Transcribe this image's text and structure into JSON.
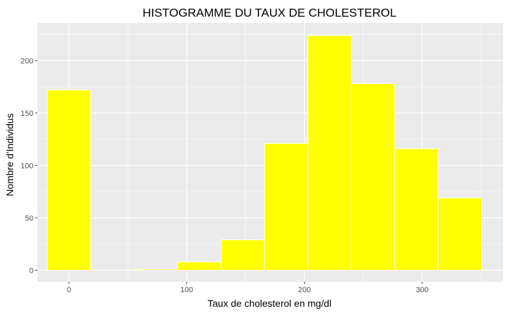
{
  "chart_data": {
    "type": "bar",
    "title": "HISTOGRAMME DU TAUX DE CHOLESTEROL",
    "xlabel": "Taux de cholesterol en mg/dl",
    "ylabel": "Nombre d'Individus",
    "xlim": [
      -26.7,
      368.5
    ],
    "ylim": [
      -11,
      236
    ],
    "xticks": [
      0,
      100,
      200,
      300
    ],
    "yticks": [
      0,
      50,
      100,
      150,
      200
    ],
    "bin_width": 36.9,
    "bins": [
      {
        "start": -18.45,
        "end": 18.45,
        "count": 172
      },
      {
        "start": 18.45,
        "end": 55.35,
        "count": 0
      },
      {
        "start": 55.35,
        "end": 92.25,
        "count": 1
      },
      {
        "start": 92.25,
        "end": 129.15,
        "count": 8
      },
      {
        "start": 129.15,
        "end": 166.05,
        "count": 29
      },
      {
        "start": 166.05,
        "end": 202.95,
        "count": 121
      },
      {
        "start": 202.95,
        "end": 239.85,
        "count": 224
      },
      {
        "start": 239.85,
        "end": 276.75,
        "count": 178
      },
      {
        "start": 276.75,
        "end": 313.65,
        "count": 116
      },
      {
        "start": 313.65,
        "end": 350.55,
        "count": 69
      }
    ],
    "grid": true,
    "legend": "none",
    "colors": {
      "panel": "#ebebeb",
      "grid": "#ffffff",
      "bar_fill": "#ffff00",
      "bar_outline": "#ffffff",
      "tick_text": "#4d4d4d",
      "tick_mark": "#333333"
    }
  }
}
